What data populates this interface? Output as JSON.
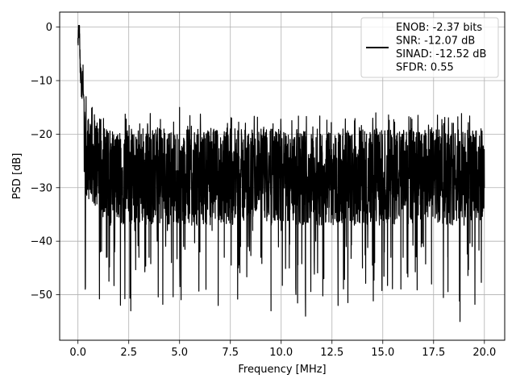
{
  "chart_data": {
    "type": "line",
    "title": "",
    "xlabel": "Frequency [MHz]",
    "ylabel": "PSD [dB]",
    "xlim": [
      -0.9,
      21.0
    ],
    "ylim": [
      -58.5,
      2.8
    ],
    "xticks": [
      0.0,
      2.5,
      5.0,
      7.5,
      10.0,
      12.5,
      15.0,
      17.5,
      20.0
    ],
    "xtick_labels": [
      "0.0",
      "2.5",
      "5.0",
      "7.5",
      "10.0",
      "12.5",
      "15.0",
      "17.5",
      "20.0"
    ],
    "yticks": [
      0,
      -10,
      -20,
      -30,
      -40,
      -50
    ],
    "ytick_labels": [
      "0",
      "−10",
      "−20",
      "−30",
      "−40",
      "−50"
    ],
    "grid": true,
    "legend_position": "top-right",
    "legend": [
      "ENOB: -2.37 bits",
      "SNR: -12.07 dB",
      "SINAD: -12.52 dB",
      "SFDR: 0.55"
    ],
    "series": [
      {
        "color": "#000000",
        "noise_floor_db": -28,
        "upper_envelope_db": -16,
        "lower_envelope_db": -52,
        "points": [
          [
            0.0,
            -3
          ],
          [
            0.02,
            -1
          ],
          [
            0.05,
            0
          ],
          [
            0.08,
            -2
          ],
          [
            0.1,
            -6
          ],
          [
            0.15,
            -10
          ],
          [
            0.2,
            -12
          ],
          [
            0.25,
            -9
          ],
          [
            0.3,
            -14
          ],
          [
            0.35,
            -20
          ],
          [
            0.4,
            -13
          ],
          [
            0.5,
            -18
          ],
          [
            0.6,
            -24
          ],
          [
            0.7,
            -15
          ],
          [
            0.8,
            -22
          ],
          [
            0.9,
            -31
          ],
          [
            1.0,
            -19
          ],
          [
            1.1,
            -42
          ],
          [
            1.2,
            -27
          ],
          [
            1.3,
            -19
          ],
          [
            1.4,
            -43
          ],
          [
            1.5,
            -30
          ],
          [
            1.6,
            -37
          ],
          [
            1.7,
            -22
          ],
          [
            1.8,
            -42
          ],
          [
            1.9,
            -26
          ],
          [
            2.0,
            -33
          ],
          [
            2.1,
            -21
          ],
          [
            2.2,
            -29
          ],
          [
            2.3,
            -40
          ],
          [
            2.4,
            -23
          ],
          [
            2.5,
            -31
          ],
          [
            2.6,
            -53
          ],
          [
            2.7,
            -24
          ],
          [
            2.8,
            -38
          ],
          [
            2.9,
            -21
          ],
          [
            3.0,
            -43
          ],
          [
            3.1,
            -27
          ],
          [
            3.2,
            -19
          ],
          [
            3.3,
            -37
          ],
          [
            3.4,
            -25
          ],
          [
            3.5,
            -43
          ],
          [
            3.6,
            -21
          ],
          [
            3.7,
            -33
          ],
          [
            3.8,
            -24
          ],
          [
            3.9,
            -40
          ],
          [
            4.0,
            -19
          ],
          [
            4.1,
            -35
          ],
          [
            4.2,
            -26
          ],
          [
            4.4,
            -38
          ],
          [
            4.5,
            -22
          ],
          [
            4.6,
            -44
          ],
          [
            4.7,
            -28
          ],
          [
            4.8,
            -21
          ],
          [
            4.9,
            -36
          ],
          [
            5.0,
            -15
          ],
          [
            5.1,
            -30
          ],
          [
            5.2,
            -41
          ],
          [
            5.4,
            -24
          ],
          [
            5.6,
            -37
          ],
          [
            5.8,
            -22
          ],
          [
            5.9,
            -30
          ],
          [
            6.0,
            -42
          ],
          [
            6.2,
            -25
          ],
          [
            6.3,
            -49
          ],
          [
            6.4,
            -21
          ],
          [
            6.6,
            -38
          ],
          [
            6.8,
            -20
          ],
          [
            6.9,
            -52
          ],
          [
            7.0,
            -27
          ],
          [
            7.2,
            -43
          ],
          [
            7.4,
            -23
          ],
          [
            7.6,
            -36
          ],
          [
            7.8,
            -21
          ],
          [
            8.0,
            -41
          ],
          [
            8.2,
            -28
          ],
          [
            8.4,
            -20
          ],
          [
            8.6,
            -38
          ],
          [
            8.8,
            -24
          ],
          [
            9.0,
            -43
          ],
          [
            9.2,
            -22
          ],
          [
            9.4,
            -35
          ],
          [
            9.5,
            -53
          ],
          [
            9.6,
            -26
          ],
          [
            9.8,
            -20
          ],
          [
            10.0,
            -38
          ],
          [
            10.2,
            -24
          ],
          [
            10.4,
            -45
          ],
          [
            10.6,
            -21
          ],
          [
            10.8,
            -33
          ],
          [
            11.0,
            -20
          ],
          [
            11.2,
            -54
          ],
          [
            11.3,
            -29
          ],
          [
            11.5,
            -22
          ],
          [
            11.7,
            -40
          ],
          [
            11.9,
            -26
          ],
          [
            12.1,
            -47
          ],
          [
            12.3,
            -20
          ],
          [
            12.5,
            -35
          ],
          [
            12.7,
            -23
          ],
          [
            12.8,
            -52
          ],
          [
            13.0,
            -28
          ],
          [
            13.2,
            -41
          ],
          [
            13.4,
            -21
          ],
          [
            13.6,
            -37
          ],
          [
            13.8,
            -24
          ],
          [
            14.0,
            -45
          ],
          [
            14.2,
            -20
          ],
          [
            14.4,
            -30
          ],
          [
            14.6,
            -44
          ],
          [
            14.8,
            -22
          ],
          [
            15.0,
            -35
          ],
          [
            15.2,
            -24
          ],
          [
            15.4,
            -43
          ],
          [
            15.6,
            -21
          ],
          [
            15.8,
            -34
          ],
          [
            16.0,
            -26
          ],
          [
            16.2,
            -46
          ],
          [
            16.4,
            -19
          ],
          [
            16.6,
            -38
          ],
          [
            16.8,
            -22
          ],
          [
            17.0,
            -41
          ],
          [
            17.2,
            -25
          ],
          [
            17.4,
            -48
          ],
          [
            17.6,
            -21
          ],
          [
            17.8,
            -36
          ],
          [
            18.0,
            -18
          ],
          [
            18.2,
            -43
          ],
          [
            18.4,
            -26
          ],
          [
            18.6,
            -33
          ],
          [
            18.8,
            -55
          ],
          [
            18.9,
            -22
          ],
          [
            19.0,
            -37
          ],
          [
            19.2,
            -24
          ],
          [
            19.4,
            -41
          ],
          [
            19.6,
            -21
          ],
          [
            19.8,
            -36
          ],
          [
            19.9,
            -23
          ],
          [
            20.0,
            -30
          ]
        ]
      }
    ]
  }
}
